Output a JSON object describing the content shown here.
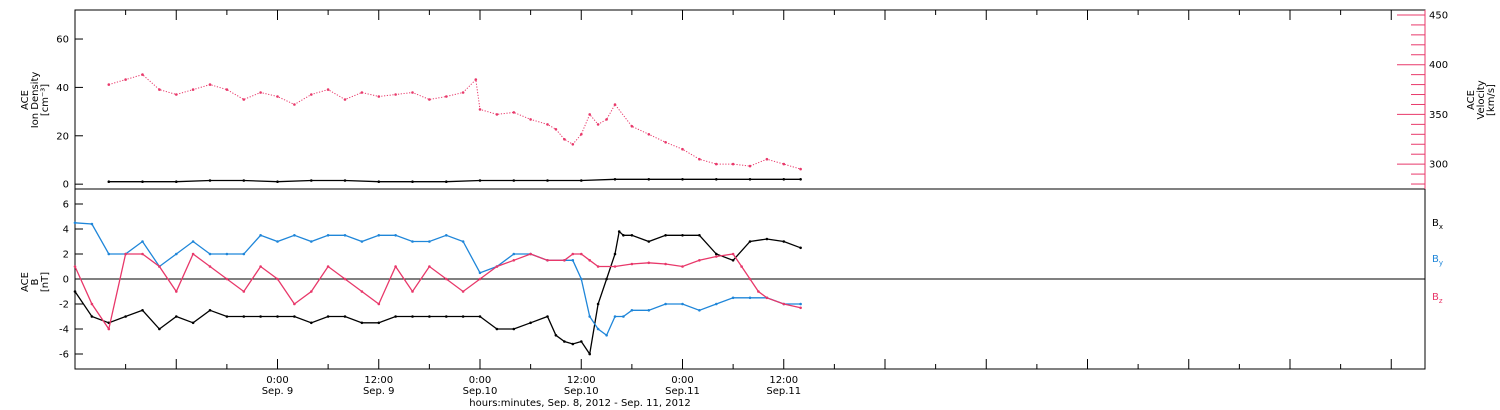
{
  "colors": {
    "density": "#000000",
    "velocity": "#e8386a",
    "bx": "#000000",
    "by": "#1f86d9",
    "bz": "#e8386a",
    "axis": "#000000"
  },
  "xaxis": {
    "range_hours": [
      -24,
      136
    ],
    "ticks": [
      {
        "hours": 0,
        "time": "0:00",
        "date": "Sep. 9"
      },
      {
        "hours": 12,
        "time": "12:00",
        "date": "Sep. 9"
      },
      {
        "hours": 24,
        "time": "0:00",
        "date": "Sep.10"
      },
      {
        "hours": 36,
        "time": "12:00",
        "date": "Sep.10"
      },
      {
        "hours": 48,
        "time": "0:00",
        "date": "Sep.11"
      },
      {
        "hours": 60,
        "time": "12:00",
        "date": "Sep.11"
      }
    ],
    "label": "hours:minutes, Sep.  8, 2012 - Sep. 11, 2012"
  },
  "chart_data": [
    {
      "type": "scatter",
      "panel": "top",
      "ylabel_left": [
        "ACE",
        "Ion Density",
        "[cm⁻³]"
      ],
      "ylabel_right": [
        "ACE",
        "Velocity",
        "[km/s]"
      ],
      "ylim_left": [
        -2,
        72
      ],
      "yticks_left": [
        0,
        20,
        40,
        60
      ],
      "ylim_right": [
        275,
        455
      ],
      "yticks_right": [
        300,
        350,
        400,
        450
      ],
      "series": [
        {
          "axis": "left",
          "x_hours": [
            -20,
            -16,
            -12,
            -8,
            -4,
            0,
            4,
            8,
            12,
            16,
            20,
            24,
            28,
            32,
            36,
            40,
            44,
            48,
            52,
            56,
            60,
            62
          ],
          "values": [
            1,
            1,
            1,
            1.5,
            1.5,
            1,
            1.5,
            1.5,
            1,
            1,
            1,
            1.5,
            1.5,
            1.5,
            1.5,
            2,
            2,
            2,
            2,
            2,
            2,
            2
          ]
        },
        {
          "axis": "right",
          "x_hours": [
            -20,
            -18,
            -16,
            -14,
            -12,
            -10,
            -8,
            -6,
            -4,
            -2,
            0,
            2,
            4,
            6,
            8,
            10,
            12,
            14,
            16,
            18,
            20,
            22,
            23.5,
            24,
            26,
            28,
            30,
            32,
            33,
            34,
            35,
            36,
            37,
            38,
            39,
            40,
            42,
            44,
            46,
            48,
            50,
            52,
            54,
            56,
            58,
            60,
            62
          ],
          "values": [
            380,
            385,
            390,
            375,
            370,
            375,
            380,
            375,
            365,
            372,
            368,
            360,
            370,
            375,
            365,
            372,
            368,
            370,
            372,
            365,
            368,
            372,
            385,
            355,
            350,
            352,
            345,
            340,
            335,
            325,
            320,
            330,
            350,
            340,
            345,
            360,
            338,
            330,
            322,
            315,
            305,
            300,
            300,
            298,
            305,
            300,
            295
          ]
        }
      ]
    },
    {
      "type": "line",
      "panel": "bottom",
      "ylabel": [
        "ACE",
        "B",
        "[nT]"
      ],
      "ylim": [
        -7.2,
        7.2
      ],
      "yticks": [
        -6,
        -4,
        -2,
        0,
        2,
        4,
        6
      ],
      "series": [
        {
          "name": "Bx",
          "x_hours": [
            -24,
            -22,
            -20,
            -18,
            -16,
            -14,
            -12,
            -10,
            -8,
            -6,
            -4,
            -2,
            0,
            2,
            4,
            6,
            8,
            10,
            12,
            14,
            16,
            18,
            20,
            22,
            24,
            26,
            28,
            30,
            32,
            33,
            34,
            35,
            36,
            37,
            38,
            39,
            40,
            40.5,
            41,
            42,
            44,
            46,
            48,
            50,
            52,
            54,
            56,
            58,
            60,
            62
          ],
          "values": [
            -1,
            -3,
            -3.5,
            -3,
            -2.5,
            -4,
            -3,
            -3.5,
            -2.5,
            -3,
            -3,
            -3,
            -3,
            -3,
            -3.5,
            -3,
            -3,
            -3.5,
            -3.5,
            -3,
            -3,
            -3,
            -3,
            -3,
            -3,
            -4,
            -4,
            -3.5,
            -3,
            -4.5,
            -5,
            -5.2,
            -5,
            -6,
            -2,
            0,
            2,
            3.8,
            3.5,
            3.5,
            3,
            3.5,
            3.5,
            3.5,
            2,
            1.5,
            3,
            3.2,
            3,
            2.5
          ]
        },
        {
          "name": "By",
          "x_hours": [
            -24,
            -22,
            -20,
            -18,
            -16,
            -14,
            -12,
            -10,
            -8,
            -6,
            -4,
            -2,
            0,
            2,
            4,
            6,
            8,
            10,
            12,
            14,
            16,
            18,
            20,
            22,
            24,
            26,
            28,
            30,
            32,
            34,
            35,
            36,
            37,
            38,
            39,
            40,
            41,
            42,
            44,
            46,
            48,
            50,
            52,
            54,
            56,
            58,
            60,
            62
          ],
          "values": [
            4.5,
            4.4,
            2,
            2,
            3,
            1,
            2,
            3,
            2,
            2,
            2,
            3.5,
            3,
            3.5,
            3,
            3.5,
            3.5,
            3,
            3.5,
            3.5,
            3,
            3,
            3.5,
            3,
            0.5,
            1,
            2,
            2,
            1.5,
            1.5,
            1.5,
            0,
            -3,
            -4,
            -4.5,
            -3,
            -3,
            -2.5,
            -2.5,
            -2,
            -2,
            -2.5,
            -2,
            -1.5,
            -1.5,
            -1.5,
            -2,
            -2
          ]
        },
        {
          "name": "Bz",
          "x_hours": [
            -24,
            -22,
            -20,
            -18,
            -16,
            -14,
            -12,
            -10,
            -8,
            -6,
            -4,
            -2,
            0,
            2,
            4,
            6,
            8,
            10,
            12,
            14,
            16,
            18,
            20,
            22,
            24,
            26,
            28,
            30,
            32,
            34,
            35,
            36,
            37,
            38,
            40,
            42,
            44,
            46,
            48,
            50,
            52,
            54,
            55,
            56,
            57,
            58,
            60,
            62
          ],
          "values": [
            1,
            -2,
            -4,
            2,
            2,
            1,
            -1,
            2,
            1,
            0,
            -1,
            1,
            0,
            -2,
            -1,
            1,
            0,
            -1,
            -2,
            1,
            -1,
            1,
            0,
            -1,
            0,
            1,
            1.5,
            2,
            1.5,
            1.5,
            2,
            2,
            1.5,
            1,
            1,
            1.2,
            1.3,
            1.2,
            1,
            1.5,
            1.8,
            2,
            1,
            0,
            -1,
            -1.5,
            -2,
            -2.3
          ]
        }
      ],
      "legend": [
        "B",
        "B",
        "B"
      ],
      "legend_subscripts": [
        "x",
        "y",
        "z"
      ]
    }
  ]
}
